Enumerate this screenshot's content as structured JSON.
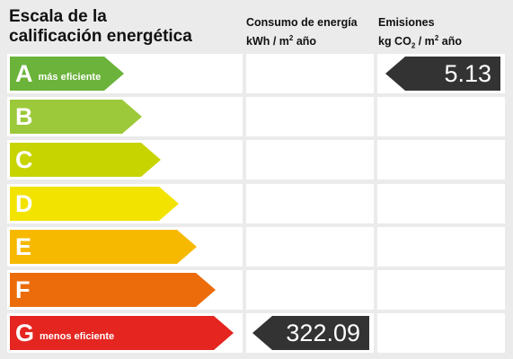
{
  "title": {
    "line1": "Escala de la",
    "line2": "calificación energética"
  },
  "columns": {
    "energy": {
      "line1": "Consumo de energía",
      "line2_prefix": "kWh / m",
      "line2_sup": "2",
      "line2_suffix": " año"
    },
    "emissions": {
      "line1": "Emisiones",
      "line2_prefix": "kg CO",
      "line2_sub": "2",
      "line2_mid": " / m",
      "line2_sup": "2",
      "line2_suffix": " año"
    }
  },
  "ratings": [
    {
      "letter": "A",
      "label": "más eficiente",
      "color": "#6bb33a"
    },
    {
      "letter": "B",
      "label": "",
      "color": "#9cc93a"
    },
    {
      "letter": "C",
      "label": "",
      "color": "#c8d400"
    },
    {
      "letter": "D",
      "label": "",
      "color": "#f2e300"
    },
    {
      "letter": "E",
      "label": "",
      "color": "#f7b900"
    },
    {
      "letter": "F",
      "label": "",
      "color": "#ec6c0c"
    },
    {
      "letter": "G",
      "label": "menos eficiente",
      "color": "#e42520"
    }
  ],
  "energy_value": {
    "rating": "G",
    "value": "322.09"
  },
  "emissions_value": {
    "rating": "A",
    "value": "5.13"
  },
  "tag_color": "#333333"
}
